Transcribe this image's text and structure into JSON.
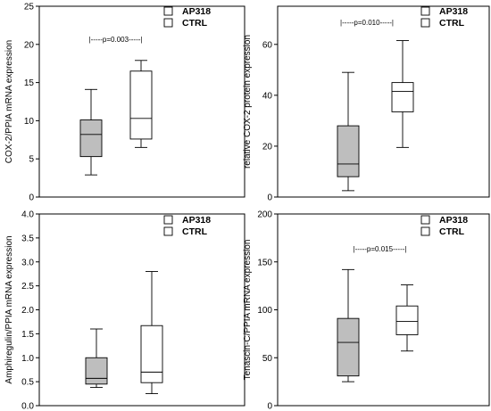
{
  "colors": {
    "AP318": "#bebebe",
    "CTRL": "#ffffff",
    "axis": "#000000"
  },
  "chart_data": [
    {
      "type": "box",
      "ylabel": "COX-2/PPIA mRNA expression",
      "ylim": [
        0,
        25
      ],
      "yticks": [
        0,
        5,
        10,
        15,
        20,
        25
      ],
      "ytick_labels": [
        "0",
        "5",
        "10",
        "15",
        "20",
        "25"
      ],
      "legend": {
        "placement": "top-right",
        "entries": [
          "AP318",
          "CTRL"
        ]
      },
      "pvalue": "|-----p=0.003-----|",
      "series": [
        {
          "name": "AP318",
          "min": 2.9,
          "q1": 5.3,
          "median": 8.2,
          "q3": 10.1,
          "max": 14.1
        },
        {
          "name": "CTRL",
          "min": 6.5,
          "q1": 7.6,
          "median": 10.3,
          "q3": 16.5,
          "max": 17.9
        }
      ]
    },
    {
      "type": "box",
      "ylabel": "relative COX-2 protein expression",
      "ylim": [
        0,
        75
      ],
      "yticks": [
        0,
        20,
        40,
        60
      ],
      "ytick_labels": [
        "0",
        "20",
        "40",
        "60"
      ],
      "legend": {
        "placement": "top-right",
        "entries": [
          "AP318",
          "CTRL"
        ]
      },
      "pvalue": "|-----p=0.010-----|",
      "series": [
        {
          "name": "AP318",
          "min": 2.5,
          "q1": 8,
          "median": 13,
          "q3": 28,
          "max": 49
        },
        {
          "name": "CTRL",
          "min": 19.5,
          "q1": 33.5,
          "median": 41.5,
          "q3": 45,
          "max": 61.5
        }
      ]
    },
    {
      "type": "box",
      "ylabel": "Amphiregulin/PPIA mRNA expression",
      "ylim": [
        0,
        4.0
      ],
      "yticks": [
        0,
        0.5,
        1.0,
        1.5,
        2.0,
        2.5,
        3.0,
        3.5,
        4.0
      ],
      "ytick_labels": [
        "0.0",
        "0.5",
        "1.0",
        "1.5",
        "2.0",
        "2.5",
        "3.0",
        "3.5",
        "4.0"
      ],
      "legend": {
        "placement": "top-right",
        "entries": [
          "AP318",
          "CTRL"
        ]
      },
      "pvalue": "",
      "series": [
        {
          "name": "AP318",
          "min": 0.38,
          "q1": 0.45,
          "median": 0.57,
          "q3": 1.0,
          "max": 1.6
        },
        {
          "name": "CTRL",
          "min": 0.25,
          "q1": 0.48,
          "median": 0.7,
          "q3": 1.67,
          "max": 2.8
        }
      ]
    },
    {
      "type": "box",
      "ylabel": "Tenascin-C/PPIA mRNA expression",
      "ylim": [
        0,
        200
      ],
      "yticks": [
        0,
        50,
        100,
        150,
        200
      ],
      "ytick_labels": [
        "0",
        "50",
        "100",
        "150",
        "200"
      ],
      "legend": {
        "placement": "top-right",
        "entries": [
          "AP318",
          "CTRL"
        ]
      },
      "pvalue": "|-----p=0.015-----|",
      "series": [
        {
          "name": "AP318",
          "min": 25,
          "q1": 31,
          "median": 66,
          "q3": 91,
          "max": 142
        },
        {
          "name": "CTRL",
          "min": 57,
          "q1": 74,
          "median": 88,
          "q3": 104,
          "max": 126
        }
      ]
    }
  ]
}
